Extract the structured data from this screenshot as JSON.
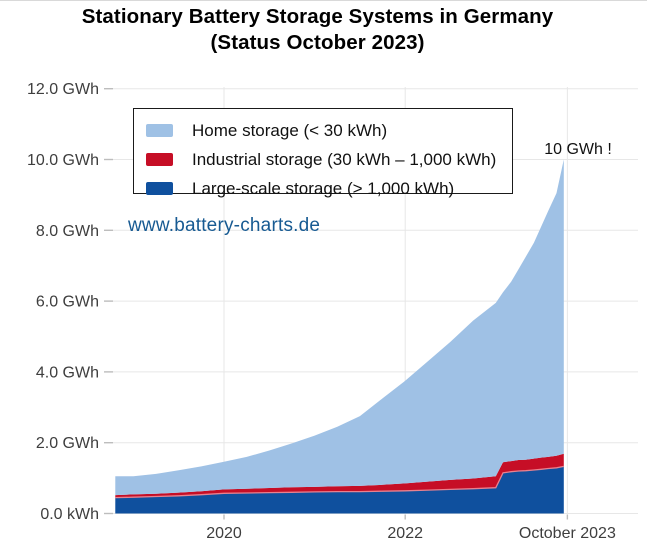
{
  "figure": {
    "title_line1": "Stationary Battery Storage Systems in Germany",
    "title_line2": "(Status October 2023)",
    "watermark": "www.battery-charts.de"
  },
  "colors": {
    "home_storage": "#9fc1e5",
    "industrial_storage": "#c60e26",
    "large_scale_storage": "#0f509e",
    "series_boundary_line": "#e8818f",
    "gridline": "#e7e7e7",
    "tick_mark": "#bdbdbd",
    "axis_text": "#3e3e3e",
    "title_text": "#000000",
    "watermark_text": "#175a92",
    "annotation_text": "#111111",
    "background": "#ffffff"
  },
  "chart_data": {
    "type": "area",
    "stacked": true,
    "title": "Stationary Battery Storage Systems in Germany (Status October 2023)",
    "xlabel": "",
    "ylabel": "",
    "xlim": [
      2018.8,
      2023.79
    ],
    "ylim": [
      0,
      12.2
    ],
    "grid": true,
    "legend_position": "top-left-inside",
    "x_unit": "decimal year",
    "y_unit": "GWh",
    "x": [
      2018.8,
      2019.0,
      2019.25,
      2019.5,
      2019.75,
      2020.0,
      2020.25,
      2020.5,
      2020.75,
      2021.0,
      2021.25,
      2021.5,
      2021.75,
      2022.0,
      2022.25,
      2022.5,
      2022.75,
      2023.0,
      2023.08,
      2023.17,
      2023.25,
      2023.33,
      2023.42,
      2023.5,
      2023.58,
      2023.67,
      2023.75
    ],
    "series": [
      {
        "id": "large_scale_storage",
        "label": "Large-scale storage (> 1,000 kWh)",
        "color": "#0f509e",
        "values": [
          0.45,
          0.46,
          0.48,
          0.5,
          0.53,
          0.57,
          0.58,
          0.59,
          0.6,
          0.61,
          0.62,
          0.62,
          0.63,
          0.64,
          0.66,
          0.68,
          0.7,
          0.73,
          1.15,
          1.18,
          1.2,
          1.21,
          1.23,
          1.25,
          1.27,
          1.29,
          1.33
        ]
      },
      {
        "id": "industrial_storage",
        "label": "Industrial storage (30 kWh – 1,000 kWh)",
        "color": "#c60e26",
        "values": [
          0.07,
          0.08,
          0.08,
          0.09,
          0.1,
          0.11,
          0.12,
          0.13,
          0.14,
          0.14,
          0.15,
          0.16,
          0.18,
          0.21,
          0.24,
          0.27,
          0.29,
          0.32,
          0.3,
          0.3,
          0.31,
          0.31,
          0.32,
          0.33,
          0.33,
          0.34,
          0.36
        ]
      },
      {
        "id": "home_storage",
        "label": "Home storage (< 30 kWh)",
        "color": "#9fc1e5",
        "values": [
          0.53,
          0.51,
          0.56,
          0.63,
          0.7,
          0.78,
          0.9,
          1.06,
          1.24,
          1.45,
          1.68,
          1.97,
          2.44,
          2.9,
          3.4,
          3.9,
          4.46,
          4.9,
          4.8,
          5.07,
          5.39,
          5.73,
          6.1,
          6.52,
          6.95,
          7.42,
          8.31
        ]
      }
    ],
    "y_ticks": [
      {
        "value": 0,
        "label": "0.0 kWh"
      },
      {
        "value": 2,
        "label": "2.0 GWh"
      },
      {
        "value": 4,
        "label": "4.0 GWh"
      },
      {
        "value": 6,
        "label": "6.0 GWh"
      },
      {
        "value": 8,
        "label": "8.0 GWh"
      },
      {
        "value": 10,
        "label": "10.0 GWh"
      },
      {
        "value": 12,
        "label": "12.0 GWh"
      }
    ],
    "x_ticks": [
      {
        "value": 2020,
        "label": "2020"
      },
      {
        "value": 2022,
        "label": "2022"
      },
      {
        "value": 2023.79,
        "label": "October 2023"
      }
    ],
    "annotation": {
      "text": "10 GWh !",
      "x": 2023.75,
      "y": 10
    }
  }
}
